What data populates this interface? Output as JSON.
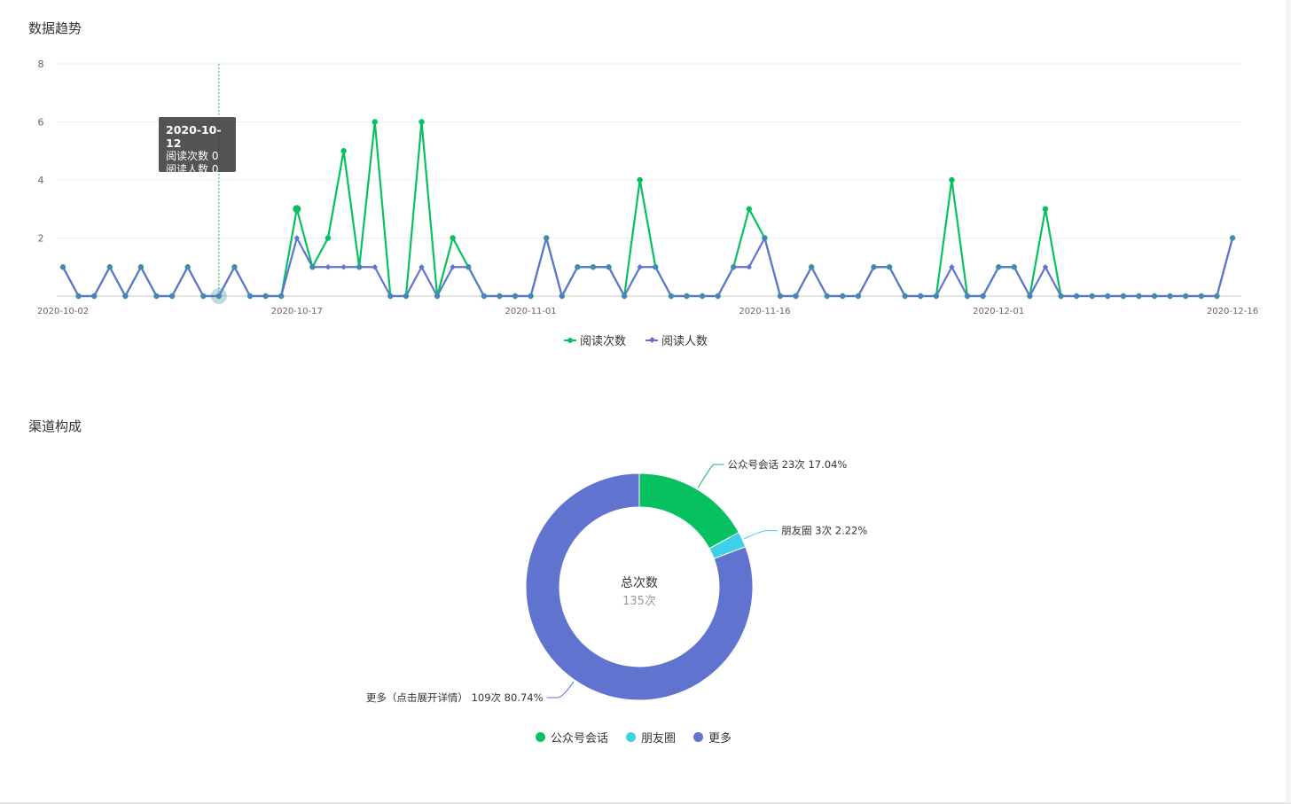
{
  "sections": {
    "trend_title": "数据趋势",
    "channel_title": "渠道构成"
  },
  "tooltip": {
    "date": "2020-10-12",
    "line1": "阅读次数 0",
    "line2": "阅读人数 0"
  },
  "colors": {
    "green": "#07c160",
    "blue": "#5f73cf",
    "cyan": "#3fd1e8",
    "grid": "#eeeeee",
    "axis": "#cccccc"
  },
  "chart_data": [
    {
      "type": "line",
      "title": "数据趋势",
      "x_start": "2020-10-02",
      "x_end": "2020-12-16",
      "x_tick_labels": [
        "2020-10-02",
        "2020-10-17",
        "2020-11-01",
        "2020-11-16",
        "2020-12-01",
        "2020-12-16"
      ],
      "ylim": [
        0,
        8
      ],
      "y_ticks": [
        2,
        4,
        6,
        8
      ],
      "grid": true,
      "legend_position": "bottom",
      "highlight_date": "2020-10-12",
      "series": [
        {
          "name": "阅读次数",
          "color": "#07c160",
          "marker": "circle",
          "values": [
            1,
            0,
            0,
            1,
            0,
            1,
            0,
            0,
            1,
            0,
            0,
            1,
            0,
            0,
            0,
            3,
            1,
            2,
            5,
            1,
            6,
            0,
            0,
            6,
            0,
            2,
            1,
            0,
            0,
            0,
            0,
            2,
            0,
            1,
            1,
            1,
            0,
            4,
            1,
            0,
            0,
            0,
            0,
            1,
            3,
            2,
            0,
            0,
            1,
            0,
            0,
            0,
            1,
            1,
            0,
            0,
            0,
            4,
            0,
            0,
            1,
            1,
            0,
            3,
            0,
            0,
            0,
            0,
            0,
            0,
            0,
            0,
            0,
            0,
            0,
            2
          ]
        },
        {
          "name": "阅读人数",
          "color": "#5f73cf",
          "marker": "diamond",
          "values": [
            1,
            0,
            0,
            1,
            0,
            1,
            0,
            0,
            1,
            0,
            0,
            1,
            0,
            0,
            0,
            2,
            1,
            1,
            1,
            1,
            1,
            0,
            0,
            1,
            0,
            1,
            1,
            0,
            0,
            0,
            0,
            2,
            0,
            1,
            1,
            1,
            0,
            1,
            1,
            0,
            0,
            0,
            0,
            1,
            1,
            2,
            0,
            0,
            1,
            0,
            0,
            0,
            1,
            1,
            0,
            0,
            0,
            1,
            0,
            0,
            1,
            1,
            0,
            1,
            0,
            0,
            0,
            0,
            0,
            0,
            0,
            0,
            0,
            0,
            0,
            2
          ]
        }
      ]
    },
    {
      "type": "pie",
      "title": "渠道构成",
      "center_label": "总次数",
      "center_value": "135次",
      "legend_position": "bottom",
      "slices": [
        {
          "name": "公众号会话",
          "value": 23,
          "label": "公众号会话 23次 17.04%",
          "color": "#07c160"
        },
        {
          "name": "朋友圈",
          "value": 3,
          "label": "朋友圈 3次 2.22%",
          "color": "#3fd1e8"
        },
        {
          "name": "更多",
          "value": 109,
          "label": "更多（点击展开详情） 109次 80.74%",
          "color": "#5f73cf"
        }
      ]
    }
  ]
}
